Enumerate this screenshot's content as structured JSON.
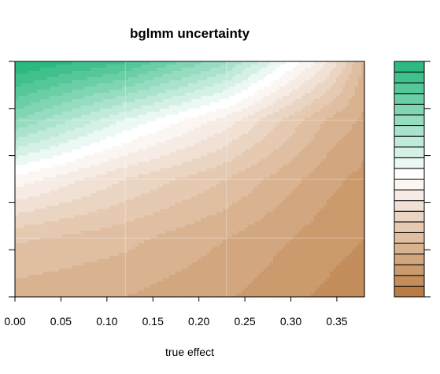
{
  "chart_data": {
    "type": "heatmap",
    "subtype": "filled-contour",
    "title": "bglmm uncertainty",
    "xlabel": "true effect",
    "ylabel": "",
    "xlim": [
      0.0,
      0.38
    ],
    "ylim": [
      0,
      1
    ],
    "x_ticks": [
      0.0,
      0.05,
      0.1,
      0.15,
      0.2,
      0.25,
      0.3,
      0.35
    ],
    "x_tick_labels": [
      "0.00",
      "0.05",
      "0.10",
      "0.15",
      "0.20",
      "0.25",
      "0.30",
      "0.35"
    ],
    "y_ticks": [
      0.0,
      0.2,
      0.4,
      0.6,
      0.8,
      1.0
    ],
    "y_tick_labels": [
      "",
      "",
      "",
      "",
      "",
      ""
    ],
    "grid_x": [
      0.0,
      0.12,
      0.23,
      0.34,
      0.38
    ],
    "grid_y": [
      0.0,
      0.25,
      0.5,
      0.75,
      1.0
    ],
    "z": [
      [
        0.2,
        0.18,
        0.14,
        0.08,
        0.06
      ],
      [
        0.28,
        0.24,
        0.18,
        0.11,
        0.09
      ],
      [
        0.48,
        0.36,
        0.27,
        0.15,
        0.12
      ],
      [
        0.77,
        0.58,
        0.43,
        0.22,
        0.17
      ],
      [
        1.0,
        0.91,
        0.73,
        0.41,
        0.22
      ]
    ],
    "levels": [
      0.0,
      0.045,
      0.09,
      0.135,
      0.18,
      0.225,
      0.27,
      0.315,
      0.36,
      0.405,
      0.45,
      0.495,
      0.54,
      0.585,
      0.63,
      0.675,
      0.72,
      0.765,
      0.81,
      0.855,
      0.9,
      0.945,
      1.0
    ],
    "colors": [
      "#b87c45",
      "#c38e5c",
      "#cb9a6d",
      "#d2a67f",
      "#d9b290",
      "#dfbea2",
      "#e5c9b1",
      "#ead5c3",
      "#f0e1d4",
      "#f6ece5",
      "#fbf6f2",
      "#ffffff",
      "#ebf8f3",
      "#d5f1e6",
      "#c0eada",
      "#aae3cd",
      "#95dcc0",
      "#80d5b3",
      "#6acea6",
      "#55c799",
      "#41c08c",
      "#2db97f"
    ],
    "gridlines": true,
    "legend": "colorkey-right"
  }
}
